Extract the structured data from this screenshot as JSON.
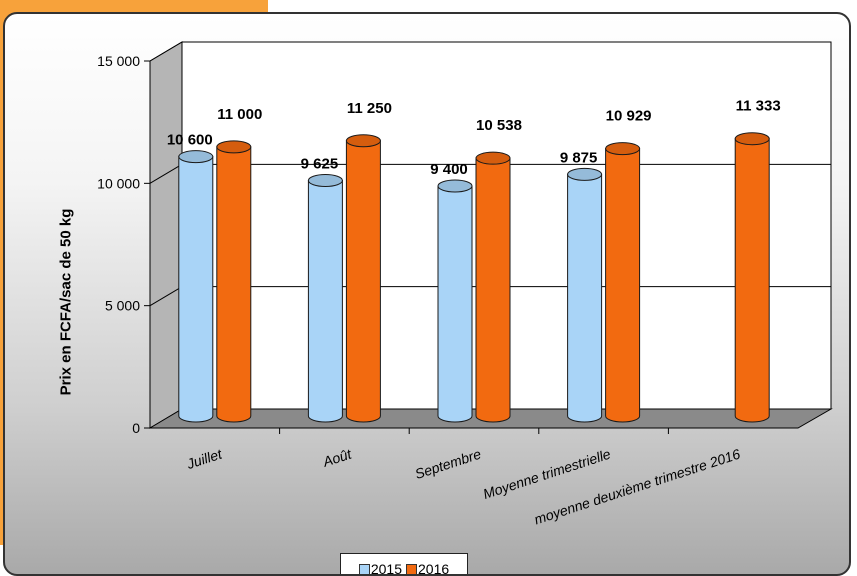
{
  "chart_data": {
    "type": "bar",
    "categories": [
      "Juillet",
      "Août",
      "Septembre",
      "Moyenne trimestrielle",
      "moyenne deuxième trimestre 2016"
    ],
    "series": [
      {
        "name": "2015",
        "values": [
          10600,
          9625,
          9400,
          9875,
          null
        ],
        "labels": [
          "10 600",
          "9 625",
          "9 400",
          "9 875",
          ""
        ],
        "color": "#a9d4f7"
      },
      {
        "name": "2016",
        "values": [
          11000,
          11250,
          10538,
          10929,
          11333
        ],
        "labels": [
          "11 000",
          "11 250",
          "10 538",
          "10 929",
          "11 333"
        ],
        "color": "#f26a10"
      }
    ],
    "ylabel": "Prix en FCFA/sac de 50 kg",
    "ylim": [
      0,
      15000
    ],
    "yticks": [
      0,
      5000,
      10000,
      15000
    ],
    "ytick_labels": [
      "0",
      "5 000",
      "10 000",
      "15 000"
    ],
    "grid": true,
    "legend_position": "bottom"
  }
}
